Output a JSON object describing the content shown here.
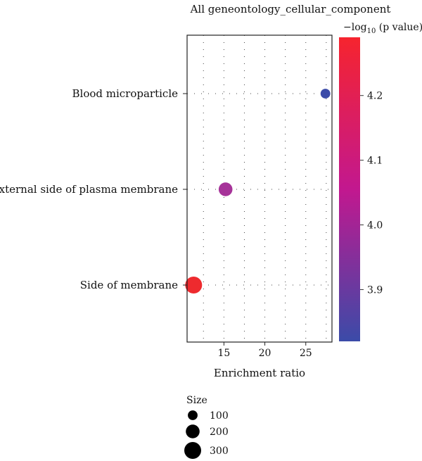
{
  "chart_data": {
    "type": "scatter",
    "title": "All geneontology_cellular_component",
    "xlabel": "Enrichment ratio",
    "ylabel": "",
    "xlim": [
      10.5,
      28.2
    ],
    "x_ticks": [
      "15",
      "20",
      "25"
    ],
    "x_tick_values": [
      15,
      20,
      25
    ],
    "grid": true,
    "categories": [
      "Blood microparticle",
      "External side of plasma membrane",
      "Side of membrane"
    ],
    "points": [
      {
        "category": "Blood microparticle",
        "x": 27.4,
        "neg_log10_p": 3.82,
        "size": 100,
        "color": "#3b4ba8"
      },
      {
        "category": "External side of plasma membrane",
        "x": 15.2,
        "neg_log10_p": 4.0,
        "size": 200,
        "color": "#a63399"
      },
      {
        "category": "Side of membrane",
        "x": 11.3,
        "neg_log10_p": 4.28,
        "size": 300,
        "color": "#ee2a2e"
      }
    ],
    "colorbar": {
      "title": "−log",
      "title_sub": "10",
      "title_tail": " (p value)",
      "min": 3.82,
      "max": 4.29,
      "ticks": [
        "3.9",
        "4.0",
        "4.1",
        "4.2"
      ],
      "tick_values": [
        3.9,
        4.0,
        4.1,
        4.2
      ],
      "color_low": "#3b4ba8",
      "color_mid": "#c2188f",
      "color_high": "#f6242e"
    },
    "size_legend": {
      "title": "Size",
      "labels": [
        "100",
        "200",
        "300"
      ],
      "values": [
        100,
        200,
        300
      ],
      "placement": "bottom-left"
    }
  }
}
